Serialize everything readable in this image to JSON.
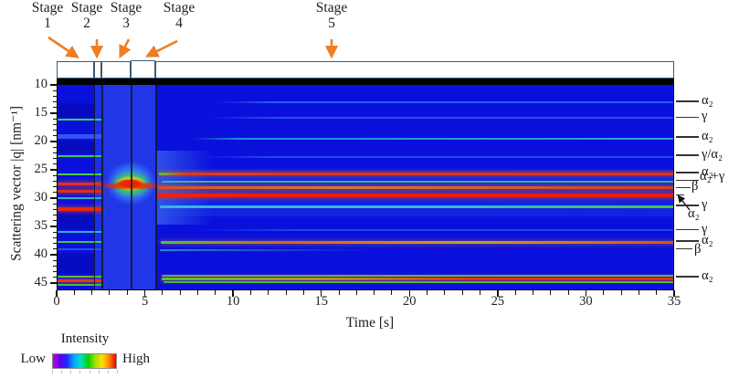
{
  "header": {
    "stages": [
      {
        "word": "Stage",
        "num": "1"
      },
      {
        "word": "Stage",
        "num": "2"
      },
      {
        "word": "Stage",
        "num": "3"
      },
      {
        "word": "Stage",
        "num": "4"
      },
      {
        "word": "Stage",
        "num": "5"
      }
    ]
  },
  "axes": {
    "x": {
      "title": "Time [s]",
      "min": 0,
      "max": 35,
      "major_ticks": [
        0,
        5,
        10,
        15,
        20,
        25,
        30,
        35
      ],
      "minor_step": 1
    },
    "y": {
      "title": "Scattering vector |q| [nm⁻¹]",
      "min": 10,
      "max": 45,
      "major_ticks": [
        10,
        15,
        20,
        25,
        30,
        35,
        40,
        45
      ],
      "minor_step": 1,
      "inverted": true
    }
  },
  "legend": {
    "title": "Intensity",
    "low_label": "Low",
    "high_label": "High",
    "colorbar_stops": [
      "#c800d2",
      "#5a00f0",
      "#1e28ff",
      "#00aaff",
      "#00e0c0",
      "#00d200",
      "#a0e000",
      "#ffe000",
      "#ff8400",
      "#ee0000"
    ]
  },
  "colors": {
    "arrow_orange": "#ef7d22",
    "stage_box_border": "#3c5a78",
    "plot_base_blue": "#0a10dc",
    "stage_divider": "rgba(14,24,44,0.85)",
    "tick_black": "#111111"
  },
  "chart_data": {
    "type": "heatmap",
    "title": "",
    "xlabel": "Time [s]",
    "ylabel": "Scattering vector |q| [nm⁻¹]",
    "xlim": [
      0,
      35
    ],
    "ylim": [
      10,
      45
    ],
    "y_axis_inverted": true,
    "colormap": "rainbow (low = purple/blue, high = red)",
    "stages": [
      {
        "name": "Stage 1",
        "t_start": 0,
        "t_end": 2.1
      },
      {
        "name": "Stage 2",
        "t_start": 2.1,
        "t_end": 2.55
      },
      {
        "name": "Stage 3",
        "t_start": 2.55,
        "t_end": 4.2
      },
      {
        "name": "Stage 4",
        "t_start": 4.2,
        "t_end": 5.6
      },
      {
        "name": "Stage 5",
        "t_start": 5.6,
        "t_end": 35
      }
    ],
    "peak_labels": [
      {
        "text": "α₂",
        "q": 12.9
      },
      {
        "text": "γ",
        "q": 15.7
      },
      {
        "text": "α₂",
        "q": 19.2
      },
      {
        "text": "γ/α₂",
        "q": 22.4
      },
      {
        "text": "α₂",
        "q": 25.5
      },
      {
        "text": "α₂+γ",
        "q": 26.9
      },
      {
        "text": "β",
        "q": 28.1
      },
      {
        "text": "α₂",
        "q": 29.4,
        "pointer_arrow": true
      },
      {
        "text": "γ",
        "q": 31.3
      },
      {
        "text": "γ",
        "q": 35.6
      },
      {
        "text": "α₂",
        "q": 37.6
      },
      {
        "text": "β",
        "q": 39.0
      },
      {
        "text": "α₂",
        "q": 43.9
      }
    ],
    "background_washes": [
      {
        "t": [
          0,
          2.1
        ],
        "q": [
          13.0,
          15.6
        ],
        "color": "rgba(0,0,120,0.28)"
      },
      {
        "t": [
          0,
          2.1
        ],
        "q": [
          19.8,
          22.0
        ],
        "color": "rgba(0,0,120,0.28)"
      },
      {
        "t": [
          0,
          2.1
        ],
        "q": [
          32.4,
          35.3
        ],
        "color": "rgba(0,0,120,0.25)"
      },
      {
        "t": [
          0,
          2.1
        ],
        "q": [
          39.6,
          43.2
        ],
        "color": "rgba(0,0,120,0.25)"
      },
      {
        "t": [
          2.1,
          2.55
        ],
        "q": null,
        "color": "rgba(70,120,248,0.30)"
      },
      {
        "t": [
          2.55,
          5.6
        ],
        "q": null,
        "color": "rgba(72,122,250,0.38)"
      },
      {
        "t": [
          5.6,
          8.8
        ],
        "q": [
          21.5,
          34.5
        ],
        "stops": [
          "rgba(96,160,255,0.45) 0%",
          "rgba(96,160,255,0) 100%"
        ]
      },
      {
        "t": [
          5.6,
          35
        ],
        "q": [
          24.8,
          33.0
        ],
        "color": "rgba(40,90,240,0.25)"
      }
    ],
    "diffraction_lines_stage1": [
      {
        "q": 16.0,
        "h": 2,
        "t": [
          0,
          2.55
        ],
        "stops": [
          "#3cd04c 0%",
          "#3cd04c 100%"
        ]
      },
      {
        "q": 19.0,
        "h": 5,
        "t": [
          0,
          2.55
        ],
        "stops": [
          "rgba(60,95,245,0.85) 0%",
          "rgba(60,95,245,0.85) 100%"
        ]
      },
      {
        "q": 22.4,
        "h": 2,
        "t": [
          0,
          2.55
        ],
        "stops": [
          "#38cc54 0%",
          "#38cc54 100%"
        ]
      },
      {
        "q": 25.7,
        "h": 2,
        "t": [
          0,
          2.55
        ],
        "stops": [
          "#46d23e 0%",
          "#46d23e 100%"
        ]
      },
      {
        "q": 27.3,
        "h": 3,
        "t": [
          0,
          2.55
        ],
        "stops": [
          "#e63218 0%",
          "#e63218 100%"
        ],
        "glow": "rgba(240,80,20,0.45)"
      },
      {
        "q": 28.6,
        "h": 3,
        "t": [
          0,
          2.55
        ],
        "stops": [
          "#e02e12 0%",
          "#e02e12 100%"
        ],
        "glow": "rgba(240,80,20,0.45)"
      },
      {
        "q": 29.9,
        "h": 2,
        "t": [
          0,
          2.55
        ],
        "stops": [
          "#2cb4bc 0%",
          "#2cb4bc 100%"
        ]
      },
      {
        "q": 31.7,
        "h": 4,
        "t": [
          0,
          2.55
        ],
        "stops": [
          "#f22606 0%",
          "#f22606 100%"
        ],
        "glow": "rgba(250,70,10,0.5)"
      },
      {
        "q": 35.8,
        "h": 2,
        "t": [
          0,
          2.55
        ],
        "stops": [
          "#2eb2d6 0%",
          "#2eb2d6 100%"
        ]
      },
      {
        "q": 37.6,
        "h": 2,
        "t": [
          0,
          2.55
        ],
        "stops": [
          "#3cc84a 0%",
          "#3cc84a 100%"
        ]
      },
      {
        "q": 38.9,
        "h": 2,
        "t": [
          0,
          2.55
        ],
        "stops": [
          "rgba(45,90,235,0.9) 0%",
          "rgba(45,90,235,0.9) 100%"
        ]
      },
      {
        "q": 43.7,
        "h": 2,
        "t": [
          0,
          2.55
        ],
        "stops": [
          "#4ec838 0%",
          "#4ec838 100%"
        ]
      },
      {
        "q": 44.4,
        "h": 2.5,
        "t": [
          0,
          2.55
        ],
        "stops": [
          "#e23c14 0%",
          "#e23c14 100%"
        ],
        "glow": "rgba(240,80,20,0.45)"
      },
      {
        "q": 45.1,
        "h": 2,
        "t": [
          0,
          2.55
        ],
        "stops": [
          "#44c03a 0%",
          "#44c03a 100%"
        ]
      }
    ],
    "amorphous_blob": {
      "description": "transient amorphous melt halo during stages 3-4",
      "layers": [
        {
          "t": [
            2.15,
            6.15
          ],
          "q": [
            21.8,
            32.6
          ],
          "stops": [
            "rgba(70,200,255,0.75) 0%",
            "rgba(70,180,255,0.5) 45%",
            "rgba(70,150,255,0) 72%"
          ]
        },
        {
          "t": [
            2.5,
            5.85
          ],
          "q": [
            23.8,
            30.8
          ],
          "stops": [
            "rgba(60,210,60,0.95) 0%",
            "rgba(60,210,60,0.8) 40%",
            "rgba(60,210,60,0) 70%"
          ]
        },
        {
          "t": [
            2.85,
            5.45
          ],
          "q": [
            25.4,
            29.2
          ],
          "stops": [
            "rgba(250,230,40,0.95) 0%",
            "rgba(250,210,40,0.85) 45%",
            "rgba(250,200,40,0) 72%"
          ]
        },
        {
          "t": [
            3.05,
            5.2
          ],
          "q": [
            26.2,
            28.4
          ],
          "stops": [
            "rgba(240,24,0,1) 0%",
            "rgba(240,30,0,0.95) 50%",
            "rgba(240,40,0,0) 78%"
          ]
        },
        {
          "t": [
            2.1,
            6.25
          ],
          "q": [
            27.0,
            28.4
          ],
          "stops": [
            "rgba(240,30,0,0.9) 0%",
            "rgba(240,40,0,0.75) 60%",
            "rgba(240,60,0,0) 100%"
          ]
        }
      ]
    },
    "diffraction_lines_stage5": [
      {
        "q": 12.9,
        "h": 2,
        "t": [
          9,
          35
        ],
        "stops": [
          "rgba(46,90,244,0) 0%",
          "#2e5af4 12%",
          "#2e5af4 100%"
        ]
      },
      {
        "q": 15.7,
        "h": 2,
        "t": [
          8.5,
          35
        ],
        "stops": [
          "rgba(40,80,240,0) 0%",
          "#2850f0 15%",
          "#2850f0 100%"
        ]
      },
      {
        "q": 19.3,
        "h": 2,
        "t": [
          7.5,
          35
        ],
        "stops": [
          "rgba(32,144,216,0) 0%",
          "#2090d8 10%",
          "#28a8d8 100%"
        ]
      },
      {
        "q": 22.5,
        "h": 2,
        "t": [
          8,
          35
        ],
        "stops": [
          "rgba(36,70,238,0) 0%",
          "#2446ee 15%",
          "#2446ee 100%"
        ]
      },
      {
        "q": 25.6,
        "h": 3,
        "t": [
          5.75,
          35
        ],
        "stops": [
          "#55c838 0%",
          "#e43814 5%",
          "#e03410 100%"
        ],
        "glow": "rgba(240,80,20,0.45)"
      },
      {
        "q": 26.9,
        "h": 2,
        "t": [
          5.9,
          35
        ],
        "stops": [
          "#38b898 0%",
          "#30b4a0 100%"
        ]
      },
      {
        "q": 28.0,
        "h": 3,
        "t": [
          5.7,
          35
        ],
        "stops": [
          "#e05014 0%",
          "#d87c1c 35%",
          "#e03c10 100%"
        ],
        "glow": "rgba(240,110,20,0.4)"
      },
      {
        "q": 29.3,
        "h": 4,
        "t": [
          5.65,
          35
        ],
        "stops": [
          "#f02004 0%",
          "#ee1c04 100%"
        ],
        "glow": "rgba(250,60,10,0.5)"
      },
      {
        "q": 31.4,
        "h": 2.5,
        "t": [
          5.8,
          35
        ],
        "stops": [
          "#34b8d8 0%",
          "#34b8d8 55%",
          "#40c83c 100%"
        ]
      },
      {
        "q": 35.5,
        "h": 2,
        "t": [
          8,
          35
        ],
        "stops": [
          "rgba(35,66,234,0) 0%",
          "#2342ea 20%",
          "#2342ea 100%"
        ]
      },
      {
        "q": 37.7,
        "h": 3,
        "t": [
          5.85,
          35
        ],
        "stops": [
          "#46c63e 0%",
          "#d4641a 25%",
          "#c8a01e 60%",
          "#cc5816 100%"
        ],
        "glow": "rgba(220,130,30,0.35)"
      },
      {
        "q": 39.0,
        "h": 2,
        "t": [
          5.8,
          20
        ],
        "stops": [
          "#2e86cc 0%",
          "rgba(40,110,200,0) 85%"
        ]
      },
      {
        "q": 43.6,
        "h": 2,
        "t": [
          5.9,
          35
        ],
        "stops": [
          "#4ec434 0%",
          "#5fc430 100%"
        ]
      },
      {
        "q": 44.15,
        "h": 2.5,
        "t": [
          5.9,
          35
        ],
        "stops": [
          "#58c232 0%",
          "#b0951c 30%",
          "#dd3410 60%",
          "#e03010 100%"
        ],
        "glow": "rgba(230,90,20,0.4)"
      },
      {
        "q": 44.75,
        "h": 2,
        "t": [
          6,
          35
        ],
        "stops": [
          "#42ba3a 0%",
          "#4cbe34 100%"
        ]
      }
    ]
  }
}
